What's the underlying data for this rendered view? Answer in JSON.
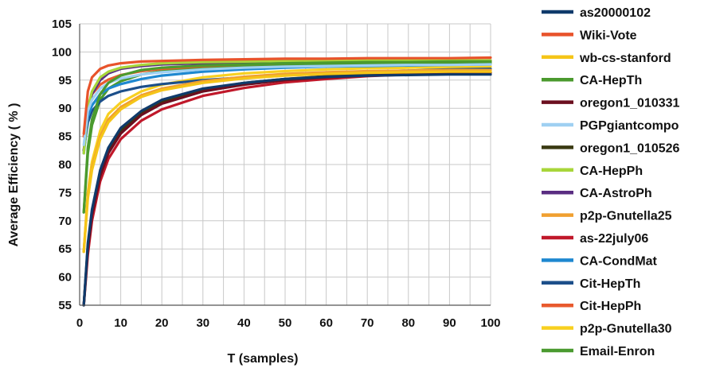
{
  "chart_data": {
    "type": "line",
    "title": "",
    "xlabel": "T (samples)",
    "ylabel": "Average Efficiency ( % )",
    "xlim": [
      0,
      100
    ],
    "ylim": [
      55,
      105
    ],
    "xticks": [
      0,
      10,
      20,
      30,
      40,
      50,
      60,
      70,
      80,
      90,
      100
    ],
    "yticks": [
      55,
      60,
      65,
      70,
      75,
      80,
      85,
      90,
      95,
      100,
      105
    ],
    "grid": true,
    "legend_position": "right",
    "series": [
      {
        "name": "as20000102",
        "color": "#0f3a6b",
        "x": [
          1,
          2,
          3,
          5,
          7,
          10,
          15,
          20,
          30,
          40,
          50,
          60,
          70,
          80,
          90,
          100
        ],
        "y": [
          55,
          66,
          72,
          79,
          83,
          86.5,
          89.5,
          91.5,
          93.5,
          94.5,
          95.2,
          95.6,
          95.8,
          95.9,
          96,
          96
        ]
      },
      {
        "name": "Wiki-Vote",
        "color": "#e8532b",
        "x": [
          1,
          2,
          3,
          5,
          7,
          10,
          15,
          20,
          30,
          40,
          50,
          60,
          70,
          80,
          90,
          100
        ],
        "y": [
          85.5,
          93,
          95.5,
          97,
          97.6,
          98,
          98.3,
          98.4,
          98.6,
          98.7,
          98.8,
          98.8,
          98.9,
          98.9,
          98.9,
          99
        ]
      },
      {
        "name": "wb-cs-stanford",
        "color": "#f5c518",
        "x": [
          1,
          2,
          3,
          5,
          7,
          10,
          15,
          20,
          30,
          40,
          50,
          60,
          70,
          80,
          90,
          100
        ],
        "y": [
          64.5,
          74,
          79,
          84.5,
          87.5,
          89.8,
          92,
          93.2,
          94.5,
          95.3,
          95.8,
          96.1,
          96.3,
          96.4,
          96.5,
          96.5
        ]
      },
      {
        "name": "CA-HepTh",
        "color": "#4b9a2e",
        "x": [
          1,
          2,
          3,
          5,
          7,
          10,
          15,
          20,
          30,
          40,
          50,
          60,
          70,
          80,
          90,
          100
        ],
        "y": [
          71.5,
          83,
          88,
          92.5,
          94.5,
          95.8,
          96.8,
          97.2,
          97.6,
          97.8,
          98,
          98.1,
          98.2,
          98.2,
          98.3,
          98.3
        ]
      },
      {
        "name": "oregon1_010331",
        "color": "#6b0f1f",
        "x": [
          1,
          2,
          3,
          5,
          7,
          10,
          15,
          20,
          30,
          40,
          50,
          60,
          70,
          80,
          90,
          100
        ],
        "y": [
          55,
          65,
          71,
          78,
          82,
          85.5,
          88.8,
          90.8,
          93,
          94.2,
          95,
          95.5,
          95.8,
          96,
          96.2,
          96.3
        ]
      },
      {
        "name": "PGPgiantcompo",
        "color": "#9fd0f2",
        "x": [
          1,
          2,
          3,
          5,
          7,
          10,
          15,
          20,
          30,
          40,
          50,
          60,
          70,
          80,
          90,
          100
        ],
        "y": [
          83.5,
          89.5,
          91.5,
          93.5,
          94.5,
          95.3,
          96,
          96.4,
          96.9,
          97.2,
          97.4,
          97.5,
          97.6,
          97.7,
          97.7,
          97.8
        ]
      },
      {
        "name": "oregon1_010526",
        "color": "#3a3a12",
        "x": [
          1,
          2,
          3,
          5,
          7,
          10,
          15,
          20,
          30,
          40,
          50,
          60,
          70,
          80,
          90,
          100
        ],
        "y": [
          55,
          65.5,
          71.5,
          78.5,
          82.5,
          86,
          89.2,
          91.2,
          93.3,
          94.5,
          95.2,
          95.7,
          96,
          96.2,
          96.3,
          96.4
        ]
      },
      {
        "name": "CA-HepPh",
        "color": "#a8d63a",
        "x": [
          1,
          2,
          3,
          5,
          7,
          10,
          15,
          20,
          30,
          40,
          50,
          60,
          70,
          80,
          90,
          100
        ],
        "y": [
          82,
          90,
          93,
          95.5,
          96.5,
          97.2,
          97.7,
          98,
          98.2,
          98.3,
          98.4,
          98.4,
          98.5,
          98.5,
          98.5,
          98.5
        ]
      },
      {
        "name": "CA-AstroPh",
        "color": "#5a2d82",
        "x": [
          1,
          2,
          3,
          5,
          7,
          10,
          15,
          20,
          30,
          40,
          50,
          60,
          70,
          80,
          90,
          100
        ],
        "y": [
          82.5,
          89.5,
          92.5,
          95,
          96.2,
          97,
          97.5,
          97.8,
          98,
          98.2,
          98.3,
          98.3,
          98.4,
          98.4,
          98.4,
          98.5
        ]
      },
      {
        "name": "p2p-Gnutella25",
        "color": "#f0a030",
        "x": [
          1,
          2,
          3,
          5,
          7,
          10,
          15,
          20,
          30,
          40,
          50,
          60,
          70,
          80,
          90,
          100
        ],
        "y": [
          64.5,
          74.5,
          79.5,
          85,
          88,
          90.2,
          92.3,
          93.5,
          94.8,
          95.6,
          96.1,
          96.4,
          96.6,
          96.7,
          96.8,
          96.8
        ]
      },
      {
        "name": "as-22july06",
        "color": "#c0182a",
        "x": [
          1,
          2,
          3,
          5,
          7,
          10,
          15,
          20,
          30,
          40,
          50,
          60,
          70,
          80,
          90,
          100
        ],
        "y": [
          55,
          64,
          70,
          77,
          81,
          84.5,
          87.8,
          89.8,
          92.2,
          93.6,
          94.6,
          95.2,
          95.7,
          96,
          96.2,
          96.4
        ]
      },
      {
        "name": "CA-CondMat",
        "color": "#1e88d0",
        "x": [
          1,
          2,
          3,
          5,
          7,
          10,
          15,
          20,
          30,
          40,
          50,
          60,
          70,
          80,
          90,
          100
        ],
        "y": [
          82,
          88.5,
          90.5,
          92.5,
          93.5,
          94.3,
          95.2,
          95.8,
          96.5,
          96.9,
          97.2,
          97.4,
          97.5,
          97.6,
          97.7,
          97.8
        ]
      },
      {
        "name": "Cit-HepTh",
        "color": "#1c4f8a",
        "x": [
          1,
          2,
          3,
          5,
          7,
          10,
          15,
          20,
          30,
          40,
          50,
          60,
          70,
          80,
          90,
          100
        ],
        "y": [
          82.5,
          87.5,
          89.5,
          91.2,
          92.2,
          93,
          93.8,
          94.3,
          95,
          95.5,
          95.9,
          96.2,
          96.5,
          96.7,
          96.9,
          97
        ]
      },
      {
        "name": "Cit-HepPh",
        "color": "#e85a2e",
        "x": [
          1,
          2,
          3,
          5,
          7,
          10,
          15,
          20,
          30,
          40,
          50,
          60,
          70,
          80,
          90,
          100
        ],
        "y": [
          85,
          90.5,
          92.5,
          94.2,
          95.1,
          95.9,
          96.6,
          97,
          97.5,
          97.8,
          98,
          98.2,
          98.3,
          98.4,
          98.5,
          98.5
        ]
      },
      {
        "name": "p2p-Gnutella30",
        "color": "#f8d020",
        "x": [
          1,
          2,
          3,
          5,
          7,
          10,
          15,
          20,
          30,
          40,
          50,
          60,
          70,
          80,
          90,
          100
        ],
        "y": [
          64.5,
          75,
          80.5,
          86,
          89,
          91,
          93,
          94.2,
          95.5,
          96.2,
          96.6,
          96.9,
          97.1,
          97.2,
          97.3,
          97.4
        ]
      },
      {
        "name": "Email-Enron",
        "color": "#4a9a30",
        "x": [
          1,
          2,
          3,
          5,
          7,
          10,
          15,
          20,
          30,
          40,
          50,
          60,
          70,
          80,
          90,
          100
        ],
        "y": [
          71.5,
          82,
          87,
          91.5,
          93.5,
          94.8,
          96,
          96.6,
          97.2,
          97.5,
          97.7,
          97.9,
          98,
          98,
          98.1,
          98.1
        ]
      }
    ]
  }
}
